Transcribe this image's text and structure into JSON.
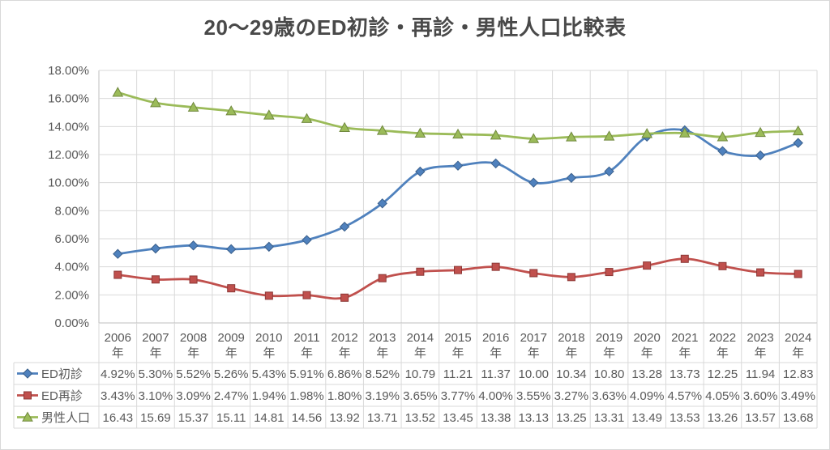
{
  "chart_data": {
    "type": "line",
    "title": "20～29歳のED初診・再診・男性人口比較表",
    "smooth": true,
    "grid": true,
    "legend_position": "data-table-left",
    "categories": [
      "2006年",
      "2007年",
      "2008年",
      "2009年",
      "2010年",
      "2011年",
      "2012年",
      "2013年",
      "2014年",
      "2015年",
      "2016年",
      "2017年",
      "2018年",
      "2019年",
      "2020年",
      "2021年",
      "2022年",
      "2023年",
      "2024年"
    ],
    "y_axis": {
      "min": 0,
      "max": 18,
      "step": 2,
      "tick_labels": [
        "0.00%",
        "2.00%",
        "4.00%",
        "6.00%",
        "8.00%",
        "10.00%",
        "12.00%",
        "14.00%",
        "16.00%",
        "18.00%"
      ],
      "format": "percent"
    },
    "series": [
      {
        "id": "ed-first-visit",
        "name": "ED初診",
        "marker": "diamond",
        "color": "#4f81bd",
        "marker_edge": "#3a5f8b",
        "values": [
          4.92,
          5.3,
          5.52,
          5.26,
          5.43,
          5.91,
          6.86,
          8.52,
          10.79,
          11.21,
          11.37,
          10.0,
          10.34,
          10.8,
          13.28,
          13.73,
          12.25,
          11.94,
          12.83
        ],
        "display": [
          "4.92%",
          "5.30%",
          "5.52%",
          "5.26%",
          "5.43%",
          "5.91%",
          "6.86%",
          "8.52%",
          "10.79",
          "11.21",
          "11.37",
          "10.00",
          "10.34",
          "10.80",
          "13.28",
          "13.73",
          "12.25",
          "11.94",
          "12.83"
        ]
      },
      {
        "id": "ed-revisit",
        "name": "ED再診",
        "marker": "square",
        "color": "#c0504d",
        "marker_edge": "#8c3836",
        "values": [
          3.43,
          3.1,
          3.09,
          2.47,
          1.94,
          1.98,
          1.8,
          3.19,
          3.65,
          3.77,
          4.0,
          3.55,
          3.27,
          3.63,
          4.09,
          4.57,
          4.05,
          3.6,
          3.49
        ],
        "display": [
          "3.43%",
          "3.10%",
          "3.09%",
          "2.47%",
          "1.94%",
          "1.98%",
          "1.80%",
          "3.19%",
          "3.65%",
          "3.77%",
          "4.00%",
          "3.55%",
          "3.27%",
          "3.63%",
          "4.09%",
          "4.57%",
          "4.05%",
          "3.60%",
          "3.49%"
        ]
      },
      {
        "id": "male-population",
        "name": "男性人口",
        "marker": "triangle",
        "color": "#9bbb59",
        "marker_edge": "#71893f",
        "values": [
          16.43,
          15.69,
          15.37,
          15.11,
          14.81,
          14.56,
          13.92,
          13.71,
          13.52,
          13.45,
          13.38,
          13.13,
          13.25,
          13.31,
          13.49,
          13.53,
          13.26,
          13.57,
          13.68
        ],
        "display": [
          "16.43",
          "15.69",
          "15.37",
          "15.11",
          "14.81",
          "14.56",
          "13.92",
          "13.71",
          "13.52",
          "13.45",
          "13.38",
          "13.13",
          "13.25",
          "13.31",
          "13.49",
          "13.53",
          "13.26",
          "13.57",
          "13.68"
        ]
      }
    ],
    "colors": {
      "text": "#595959",
      "title_text": "#494949",
      "gridline": "#d9d9d9",
      "axis_line": "#bfbfbf",
      "background": "#ffffff"
    }
  }
}
